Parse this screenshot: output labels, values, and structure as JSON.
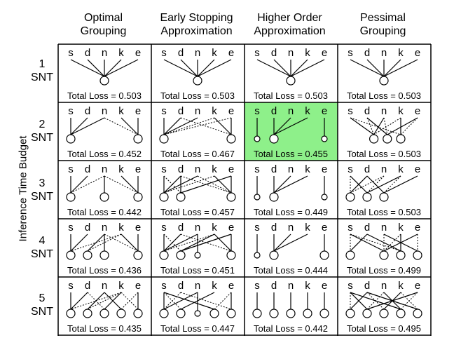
{
  "columns": [
    {
      "title": "Optimal\nGrouping"
    },
    {
      "title": "Early Stopping\nApproximation"
    },
    {
      "title": "Higher Order\nApproximation"
    },
    {
      "title": "Pessimal\nGrouping"
    }
  ],
  "rows": [
    {
      "label": "1\nSNT"
    },
    {
      "label": "2\nSNT"
    },
    {
      "label": "3\nSNT"
    },
    {
      "label": "4\nSNT"
    },
    {
      "label": "5\nSNT"
    }
  ],
  "y_axis_label": "Inference Time Budget",
  "task_labels": [
    "s",
    "d",
    "n",
    "k",
    "e"
  ],
  "loss_prefix": "Total Loss = ",
  "highlight_color": "#8ef08a",
  "highlight_cell": [
    1,
    2
  ],
  "cells": [
    [
      {
        "loss": "0.503",
        "networks": [
          {
            "pos": 2,
            "r": "m",
            "solid": [
              0,
              1,
              2,
              3,
              4
            ],
            "dotted": []
          }
        ]
      },
      {
        "loss": "0.503",
        "networks": [
          {
            "pos": 2,
            "r": "m",
            "solid": [
              0,
              1,
              2,
              3,
              4
            ],
            "dotted": []
          }
        ]
      },
      {
        "loss": "0.503",
        "networks": [
          {
            "pos": 2,
            "r": "m",
            "solid": [
              0,
              1,
              2,
              3,
              4
            ],
            "dotted": []
          }
        ]
      },
      {
        "loss": "0.503",
        "networks": [
          {
            "pos": 2,
            "r": "m",
            "solid": [
              0,
              1,
              2,
              3,
              4
            ],
            "dotted": []
          }
        ]
      }
    ],
    [
      {
        "loss": "0.452",
        "networks": [
          {
            "pos": 0,
            "r": "m",
            "solid": [
              0,
              1,
              2
            ],
            "dotted": []
          },
          {
            "pos": 4,
            "r": "m",
            "solid": [
              3,
              4
            ],
            "dotted": [
              2
            ]
          }
        ]
      },
      {
        "loss": "0.467",
        "networks": [
          {
            "pos": 0,
            "r": "m",
            "solid": [
              0,
              1,
              2
            ],
            "dotted": [
              3,
              4
            ]
          },
          {
            "pos": 4,
            "r": "m",
            "solid": [
              3,
              4
            ],
            "dotted": [
              1
            ]
          }
        ]
      },
      {
        "loss": "0.455",
        "networks": [
          {
            "pos": 0,
            "r": "s",
            "solid": [
              0
            ],
            "dotted": []
          },
          {
            "pos": 1,
            "r": "m",
            "solid": [
              1,
              2,
              3
            ],
            "dotted": []
          },
          {
            "pos": 4,
            "r": "s",
            "solid": [
              4
            ],
            "dotted": []
          }
        ]
      },
      {
        "loss": "0.503",
        "networks": [
          {
            "pos": 1.4,
            "r": "m",
            "solid": [
              0,
              2
            ],
            "dotted": [
              1,
              3
            ]
          },
          {
            "pos": 2.2,
            "r": "m",
            "solid": [
              1,
              4
            ],
            "dotted": [
              2
            ]
          },
          {
            "pos": 3.0,
            "r": "m",
            "solid": [
              3
            ],
            "dotted": [
              0,
              4
            ]
          }
        ]
      }
    ],
    [
      {
        "loss": "0.442",
        "networks": [
          {
            "pos": 0,
            "r": "m",
            "solid": [
              0,
              1
            ],
            "dotted": [
              2
            ]
          },
          {
            "pos": 2,
            "r": "m",
            "solid": [
              2
            ],
            "dotted": []
          },
          {
            "pos": 4,
            "r": "m",
            "solid": [
              3,
              4
            ],
            "dotted": [
              2
            ]
          }
        ]
      },
      {
        "loss": "0.457",
        "networks": [
          {
            "pos": 0,
            "r": "m",
            "solid": [
              0,
              1,
              2
            ],
            "dotted": [
              3
            ]
          },
          {
            "pos": 1,
            "r": "m",
            "solid": [
              1,
              4
            ],
            "dotted": [
              0
            ]
          },
          {
            "pos": 4,
            "r": "m",
            "solid": [
              3,
              4
            ],
            "dotted": [
              1,
              2
            ]
          }
        ]
      },
      {
        "loss": "0.449",
        "networks": [
          {
            "pos": 0,
            "r": "s",
            "solid": [
              0
            ],
            "dotted": []
          },
          {
            "pos": 1,
            "r": "m",
            "solid": [
              1,
              2,
              3
            ],
            "dotted": []
          },
          {
            "pos": 4,
            "r": "s",
            "solid": [
              4
            ],
            "dotted": []
          }
        ]
      },
      {
        "loss": "0.503",
        "networks": [
          {
            "pos": 0,
            "r": "m",
            "solid": [
              1
            ],
            "dotted": [
              0,
              2
            ]
          },
          {
            "pos": 1,
            "r": "m",
            "solid": [
              0,
              3
            ],
            "dotted": [
              2
            ]
          },
          {
            "pos": 2,
            "r": "m",
            "solid": [
              1,
              4
            ],
            "dotted": [
              3
            ]
          }
        ]
      }
    ],
    [
      {
        "loss": "0.436",
        "networks": [
          {
            "pos": 0,
            "r": "m",
            "solid": [
              0,
              1
            ],
            "dotted": [
              3
            ]
          },
          {
            "pos": 1,
            "r": "m",
            "solid": [
              2
            ],
            "dotted": [
              3
            ]
          },
          {
            "pos": 2,
            "r": "m",
            "solid": [
              2
            ],
            "dotted": []
          },
          {
            "pos": 4,
            "r": "m",
            "solid": [
              3,
              4
            ],
            "dotted": [
              2
            ]
          }
        ]
      },
      {
        "loss": "0.451",
        "networks": [
          {
            "pos": 0,
            "r": "m",
            "solid": [
              0,
              1,
              2
            ],
            "dotted": [
              3
            ]
          },
          {
            "pos": 1,
            "r": "m",
            "solid": [
              3,
              4
            ],
            "dotted": [
              0
            ]
          },
          {
            "pos": 2,
            "r": "s",
            "solid": [
              2
            ],
            "dotted": []
          },
          {
            "pos": 4,
            "r": "m",
            "solid": [
              3,
              4
            ],
            "dotted": [
              1
            ]
          }
        ]
      },
      {
        "loss": "0.444",
        "networks": [
          {
            "pos": 0,
            "r": "s",
            "solid": [
              0
            ],
            "dotted": []
          },
          {
            "pos": 1,
            "r": "m",
            "solid": [
              1,
              2,
              3
            ],
            "dotted": []
          },
          {
            "pos": 4,
            "r": "m",
            "solid": [
              4
            ],
            "dotted": []
          }
        ]
      },
      {
        "loss": "0.499",
        "networks": [
          {
            "pos": 0,
            "r": "m",
            "solid": [
              1
            ],
            "dotted": [
              0
            ]
          },
          {
            "pos": 2,
            "r": "m",
            "solid": [
              0,
              4
            ],
            "dotted": [
              2,
              3
            ]
          },
          {
            "pos": 3,
            "r": "m",
            "solid": [
              1,
              3
            ],
            "dotted": [
              0
            ]
          },
          {
            "pos": 4,
            "r": "m",
            "solid": [
              2
            ],
            "dotted": [
              4
            ]
          }
        ]
      }
    ],
    [
      {
        "loss": "0.435",
        "networks": [
          {
            "pos": 0,
            "r": "m",
            "solid": [
              0,
              1
            ],
            "dotted": [
              3
            ]
          },
          {
            "pos": 1,
            "r": "m",
            "solid": [
              2
            ],
            "dotted": [
              3
            ]
          },
          {
            "pos": 2,
            "r": "m",
            "solid": [
              3
            ],
            "dotted": [
              1
            ]
          },
          {
            "pos": 3,
            "r": "m",
            "solid": [
              2
            ],
            "dotted": [
              4
            ]
          },
          {
            "pos": 4,
            "r": "m",
            "solid": [
              4
            ],
            "dotted": [
              3
            ]
          }
        ]
      },
      {
        "loss": "0.447",
        "networks": [
          {
            "pos": 0,
            "r": "m",
            "solid": [
              0,
              2
            ],
            "dotted": [
              1
            ]
          },
          {
            "pos": 1,
            "r": "m",
            "solid": [
              3
            ],
            "dotted": [
              0
            ]
          },
          {
            "pos": 2,
            "r": "s",
            "solid": [
              2
            ],
            "dotted": []
          },
          {
            "pos": 3,
            "r": "m",
            "solid": [
              0
            ],
            "dotted": [
              4
            ]
          },
          {
            "pos": 4,
            "r": "m",
            "solid": [
              4
            ],
            "dotted": [
              1
            ]
          }
        ]
      },
      {
        "loss": "0.442",
        "networks": [
          {
            "pos": 0,
            "r": "m",
            "solid": [
              0
            ],
            "dotted": []
          },
          {
            "pos": 1,
            "r": "m",
            "solid": [
              1
            ],
            "dotted": []
          },
          {
            "pos": 2,
            "r": "m",
            "solid": [
              2
            ],
            "dotted": []
          },
          {
            "pos": 3,
            "r": "m",
            "solid": [
              3
            ],
            "dotted": []
          },
          {
            "pos": 4,
            "r": "m",
            "solid": [
              4
            ],
            "dotted": []
          }
        ]
      },
      {
        "loss": "0.495",
        "networks": [
          {
            "pos": 0,
            "r": "m",
            "solid": [
              1
            ],
            "dotted": [
              0
            ]
          },
          {
            "pos": 1,
            "r": "m",
            "solid": [
              0,
              4
            ],
            "dotted": [
              2
            ]
          },
          {
            "pos": 2,
            "r": "m",
            "solid": [
              3
            ],
            "dotted": [
              1
            ]
          },
          {
            "pos": 3,
            "r": "m",
            "solid": [
              0,
              2
            ],
            "dotted": [
              4
            ]
          },
          {
            "pos": 4,
            "r": "m",
            "solid": [
              1
            ],
            "dotted": [
              3
            ]
          }
        ]
      }
    ]
  ]
}
